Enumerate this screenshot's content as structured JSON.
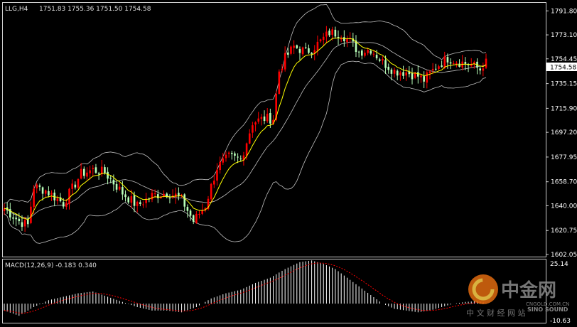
{
  "header": {
    "symbol": "LLG,H4",
    "ohlc": "1751.83 1755.36 1751.50 1754.58"
  },
  "price_label": "1754.58",
  "macd": {
    "title": "MACD(12,26,9) -0.183 0.340",
    "axis_top": "25.14",
    "axis_bottom": "-10.63"
  },
  "watermark": {
    "brand": "中金网",
    "tagline": "中 文 财 经 网 站",
    "url": "CNGOLD.COM.CN",
    "sino": "SINO SOUND"
  },
  "colors": {
    "background": "#000000",
    "bull": "#ff0000",
    "bear": "#b8ffb8",
    "ma": "#ffff00",
    "bands": "#c0c0c0",
    "signal": "#ff0000",
    "histogram": "#ffffff"
  },
  "chart_data": {
    "type": "candlestick",
    "timeframe": "H4",
    "y_ticks": [
      "1791.80",
      "1773.10",
      "1754.45",
      "1735.15",
      "1715.90",
      "1697.20",
      "1677.95",
      "1658.70",
      "1640.00",
      "1620.75",
      "1602.05"
    ],
    "y_range": [
      1602.05,
      1797.5
    ],
    "current_price": 1754.58,
    "key_points": [
      [
        0,
        1638
      ],
      [
        5,
        1628
      ],
      [
        8,
        1625
      ],
      [
        10,
        1655
      ],
      [
        14,
        1652
      ],
      [
        20,
        1642
      ],
      [
        26,
        1665
      ],
      [
        30,
        1668
      ],
      [
        34,
        1666
      ],
      [
        40,
        1650
      ],
      [
        45,
        1640
      ],
      [
        50,
        1648
      ],
      [
        55,
        1650
      ],
      [
        58,
        1648
      ],
      [
        60,
        1645
      ],
      [
        64,
        1628
      ],
      [
        68,
        1640
      ],
      [
        72,
        1670
      ],
      [
        76,
        1678
      ],
      [
        80,
        1676
      ],
      [
        82,
        1690
      ],
      [
        84,
        1705
      ],
      [
        88,
        1708
      ],
      [
        91,
        1708
      ],
      [
        93,
        1745
      ],
      [
        95,
        1755
      ],
      [
        98,
        1764
      ],
      [
        102,
        1760
      ],
      [
        104,
        1762
      ],
      [
        107,
        1768
      ],
      [
        110,
        1775
      ],
      [
        114,
        1774
      ],
      [
        117,
        1768
      ],
      [
        120,
        1760
      ],
      [
        124,
        1762
      ],
      [
        128,
        1752
      ],
      [
        132,
        1745
      ],
      [
        136,
        1744
      ],
      [
        140,
        1741
      ],
      [
        142,
        1738
      ],
      [
        146,
        1748
      ],
      [
        150,
        1755
      ],
      [
        154,
        1752
      ],
      [
        158,
        1750
      ],
      [
        161,
        1746
      ],
      [
        163,
        1754
      ]
    ],
    "macd_range": [
      -10.63,
      25.14
    ],
    "macd_key_points": [
      [
        0,
        -4
      ],
      [
        5,
        -7
      ],
      [
        10,
        -2
      ],
      [
        15,
        2
      ],
      [
        20,
        4
      ],
      [
        25,
        6
      ],
      [
        30,
        7
      ],
      [
        35,
        4
      ],
      [
        40,
        1
      ],
      [
        45,
        -2
      ],
      [
        50,
        -4
      ],
      [
        55,
        -4
      ],
      [
        60,
        -5
      ],
      [
        65,
        -2
      ],
      [
        70,
        3
      ],
      [
        75,
        6
      ],
      [
        80,
        8
      ],
      [
        85,
        12
      ],
      [
        90,
        15
      ],
      [
        95,
        20
      ],
      [
        100,
        24
      ],
      [
        104,
        25
      ],
      [
        108,
        23
      ],
      [
        112,
        20
      ],
      [
        116,
        15
      ],
      [
        120,
        10
      ],
      [
        124,
        5
      ],
      [
        128,
        0
      ],
      [
        132,
        -3
      ],
      [
        136,
        -4
      ],
      [
        140,
        -5
      ],
      [
        144,
        -4
      ],
      [
        148,
        -2
      ],
      [
        152,
        0
      ],
      [
        156,
        1
      ],
      [
        160,
        1.5
      ],
      [
        163,
        0.34
      ]
    ],
    "n_bars": 164
  }
}
